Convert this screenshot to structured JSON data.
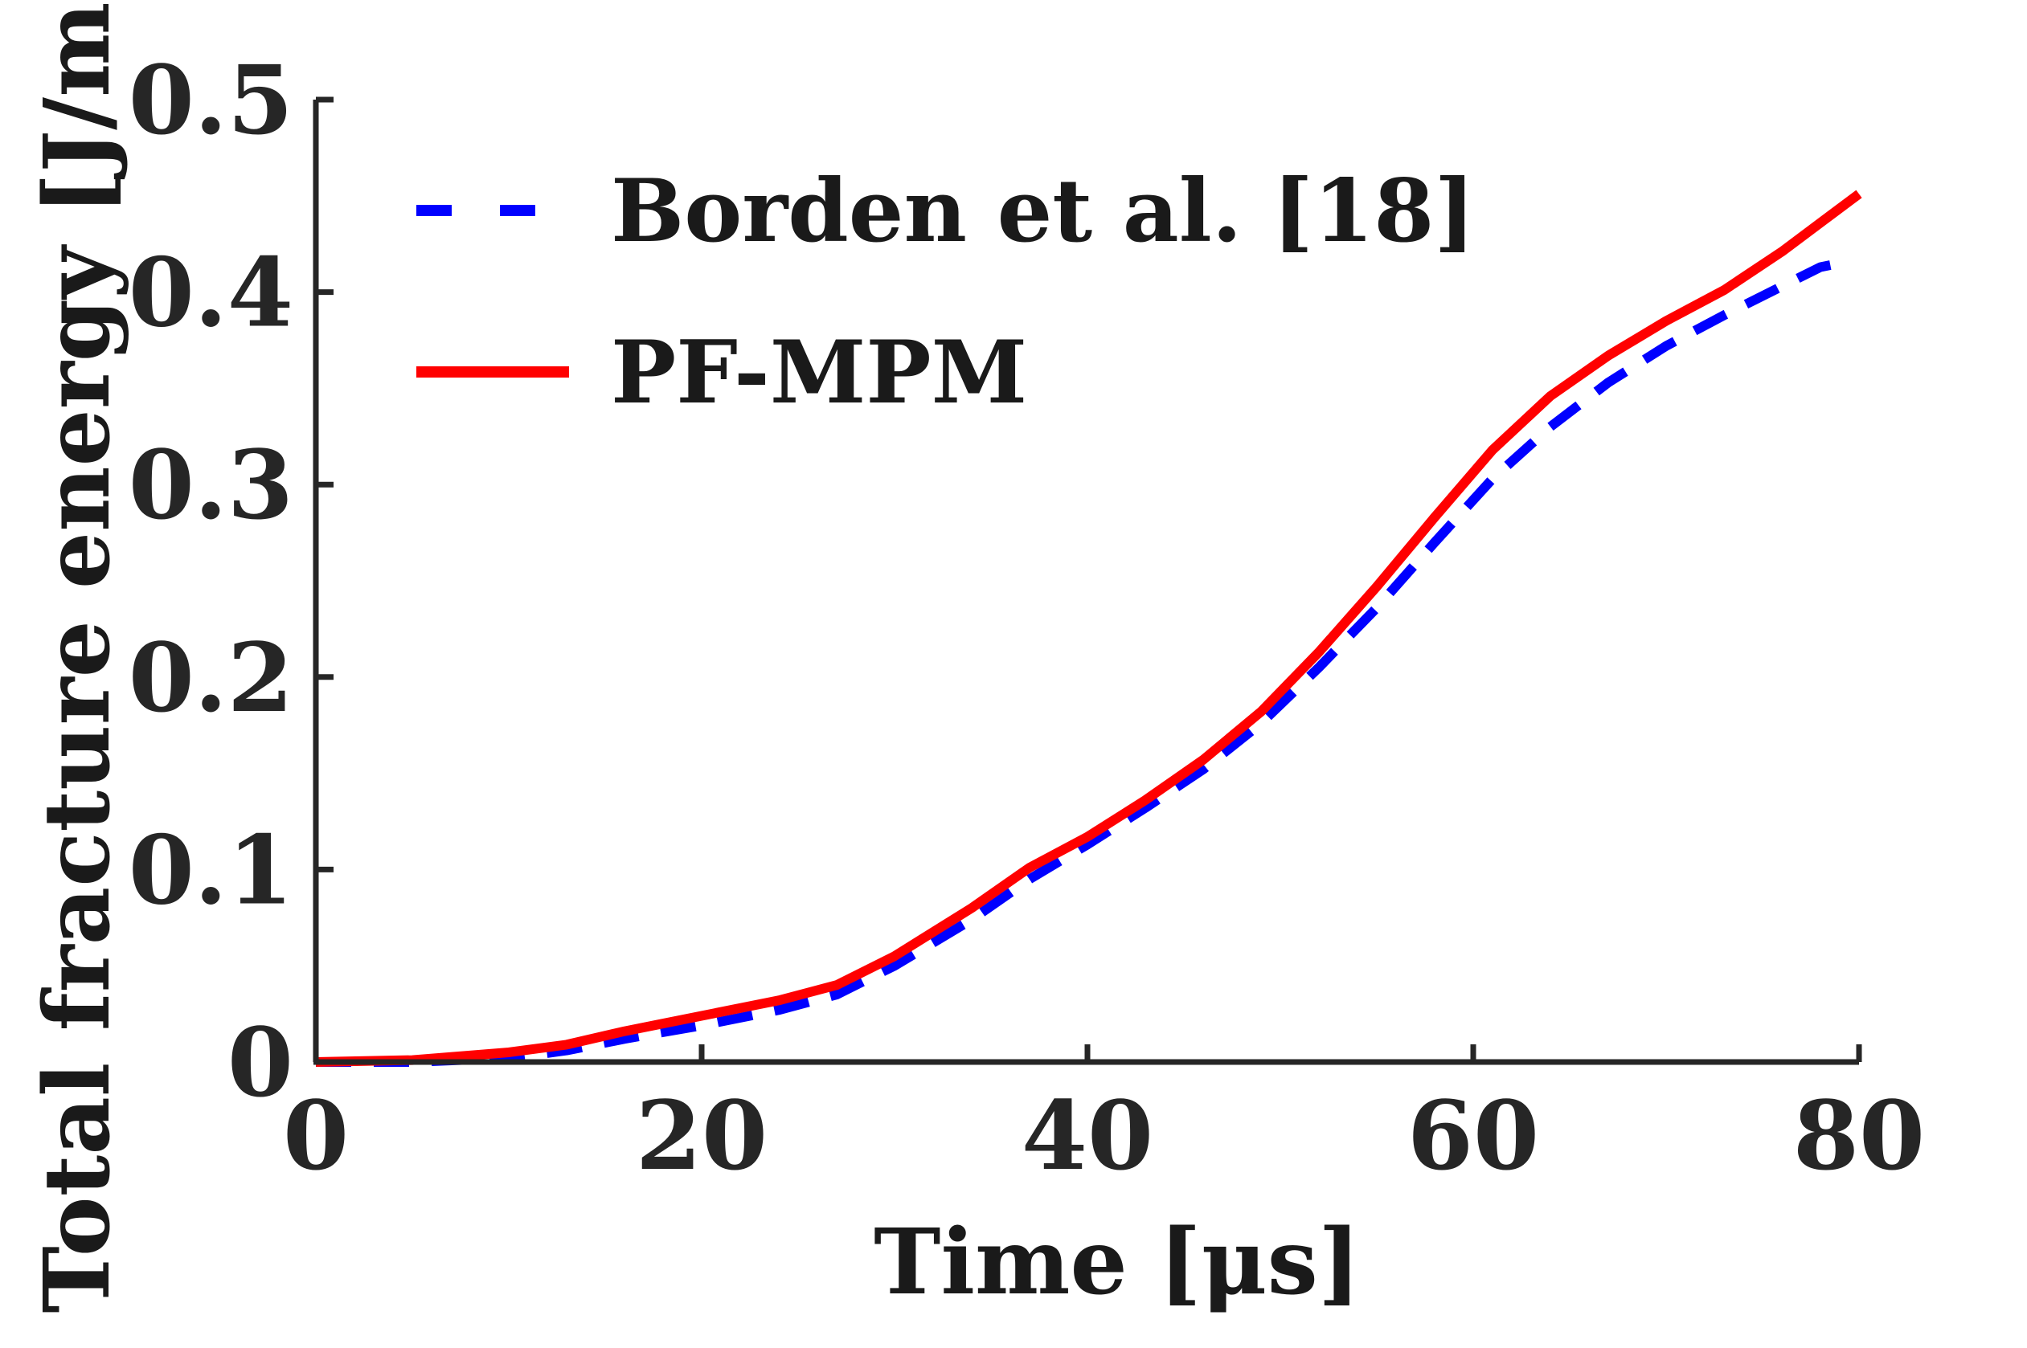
{
  "chart_data": {
    "type": "line",
    "xlabel": "Time [μs]",
    "ylabel": "Total fracture energy [J/m]",
    "xlim": [
      0,
      80
    ],
    "ylim": [
      0,
      0.5
    ],
    "xticks": [
      "0",
      "20",
      "40",
      "60",
      "80"
    ],
    "yticks": [
      "0",
      "0.1",
      "0.2",
      "0.3",
      "0.4",
      "0.5"
    ],
    "grid": false,
    "legend_position": "top-left",
    "series": [
      {
        "name": "Borden et al. [18]",
        "color": "#0000ff",
        "style": "dashed",
        "x": [
          0,
          5,
          10,
          13,
          16,
          20,
          24,
          27,
          30,
          34,
          37,
          40,
          43,
          46,
          49,
          52,
          55,
          58,
          61,
          64,
          67,
          70,
          73,
          76,
          78,
          79.5
        ],
        "y": [
          0,
          0,
          0.002,
          0.006,
          0.012,
          0.019,
          0.027,
          0.035,
          0.05,
          0.074,
          0.095,
          0.113,
          0.132,
          0.152,
          0.176,
          0.205,
          0.236,
          0.27,
          0.303,
          0.33,
          0.353,
          0.372,
          0.388,
          0.403,
          0.413,
          0.416
        ]
      },
      {
        "name": "PF-MPM",
        "color": "#ff0000",
        "style": "solid",
        "x": [
          0,
          5,
          10,
          13,
          16,
          20,
          24,
          27,
          30,
          34,
          37,
          40,
          43,
          46,
          49,
          52,
          55,
          58,
          61,
          64,
          67,
          70,
          73,
          76,
          78,
          80
        ],
        "y": [
          0,
          0.001,
          0.005,
          0.009,
          0.016,
          0.024,
          0.032,
          0.04,
          0.055,
          0.08,
          0.101,
          0.117,
          0.136,
          0.157,
          0.182,
          0.213,
          0.247,
          0.283,
          0.318,
          0.346,
          0.367,
          0.385,
          0.401,
          0.421,
          0.436,
          0.451
        ]
      }
    ]
  }
}
